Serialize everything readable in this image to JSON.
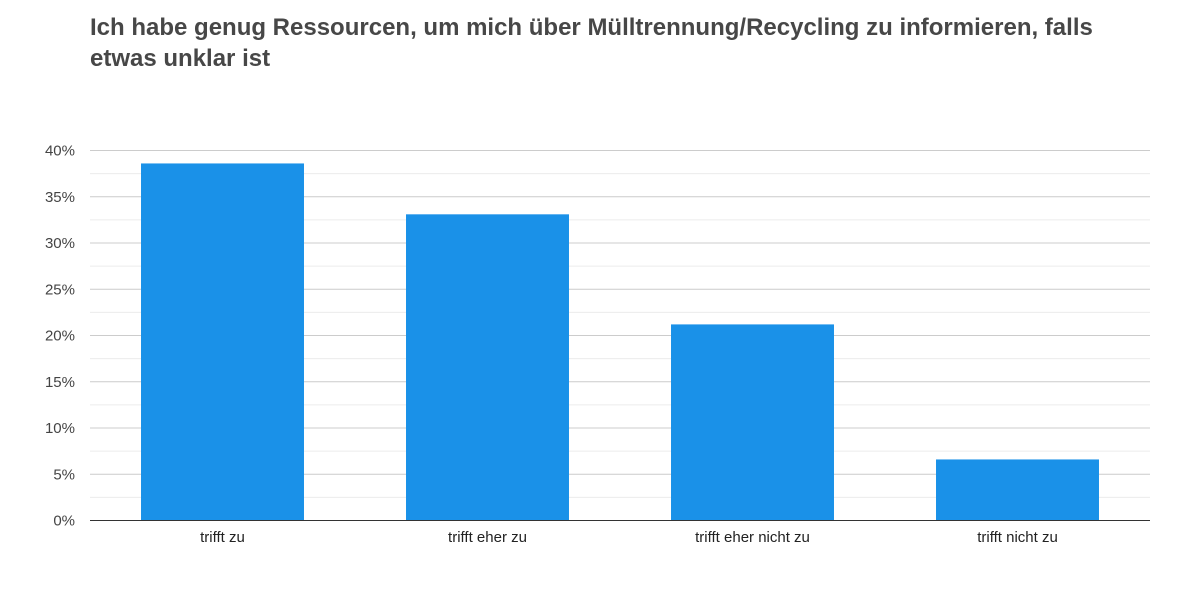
{
  "chart_data": {
    "type": "bar",
    "title": "Ich habe genug Ressourcen, um mich über Mülltrennung/Recycling zu informieren, falls etwas unklar ist",
    "categories": [
      "trifft zu",
      "trifft eher zu",
      "trifft eher nicht zu",
      "trifft nicht zu"
    ],
    "values": [
      38.6,
      33.1,
      21.2,
      6.6
    ],
    "ylim": [
      0,
      40
    ],
    "yticks": [
      0,
      5,
      10,
      15,
      20,
      25,
      30,
      35,
      40
    ],
    "ytick_labels": [
      "0%",
      "5%",
      "10%",
      "15%",
      "20%",
      "25%",
      "30%",
      "35%",
      "40%"
    ],
    "xlabel": "",
    "ylabel": "",
    "grid": true,
    "legend": "none",
    "colors": {
      "bar": "#1a91e8",
      "grid_major": "#cccccc",
      "grid_minor": "#ececec",
      "axis": "#333333",
      "title": "#474747"
    }
  }
}
